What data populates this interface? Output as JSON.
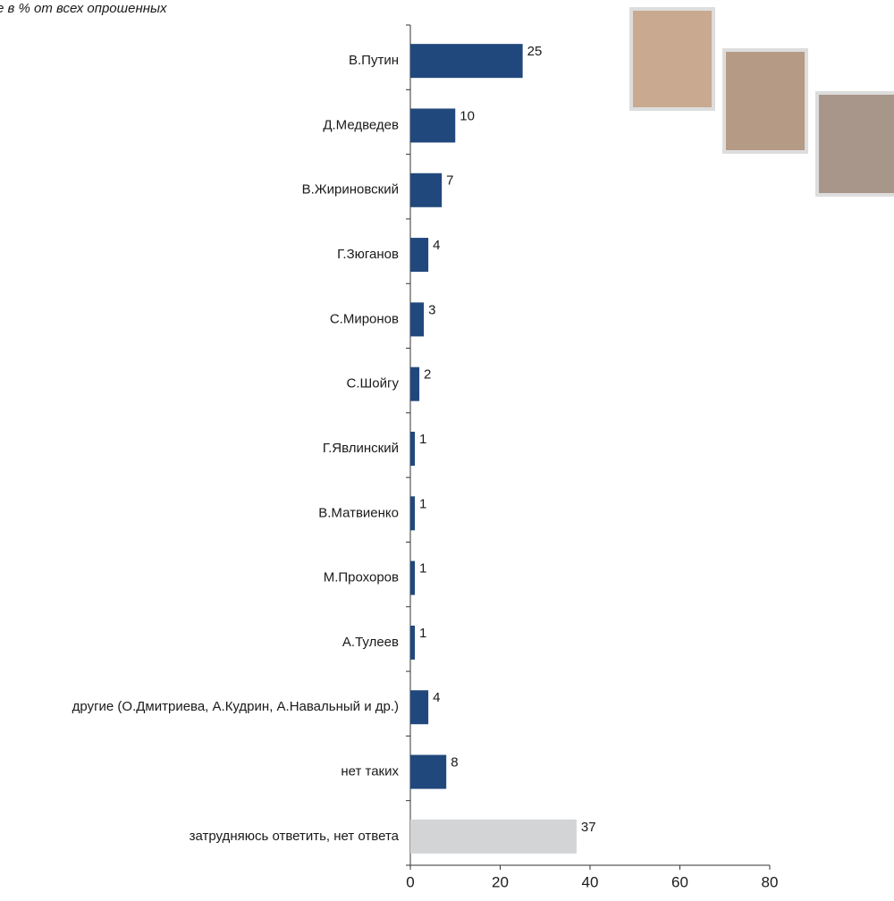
{
  "chart_data": {
    "type": "barh",
    "subtitle": "е в % от всех опрошенных",
    "categories": [
      "В.Путин",
      "Д.Медведев",
      "В.Жириновский",
      "Г.Зюганов",
      "С.Миронов",
      "С.Шойгу",
      "Г.Явлинский",
      "В.Матвиенко",
      "М.Прохоров",
      "А.Тулеев",
      "другие (О.Дмитриева, А.Кудрин, А.Навальный и др.)",
      "нет таких",
      "затрудняюсь ответить, нет ответа"
    ],
    "values": [
      25,
      10,
      7,
      4,
      3,
      2,
      1,
      1,
      1,
      1,
      4,
      8,
      37
    ],
    "colors": [
      "#21487c",
      "#21487c",
      "#21487c",
      "#21487c",
      "#21487c",
      "#21487c",
      "#21487c",
      "#21487c",
      "#21487c",
      "#21487c",
      "#21487c",
      "#21487c",
      "#d3d4d6"
    ],
    "xlim": [
      0,
      80
    ],
    "xticks": [
      0,
      20,
      40,
      60,
      80
    ],
    "grid": false
  }
}
